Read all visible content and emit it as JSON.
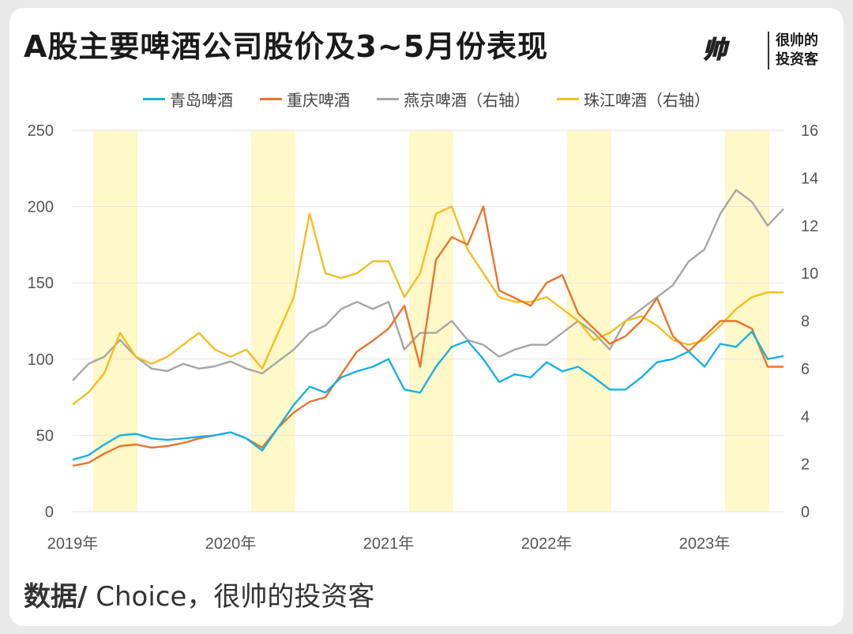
{
  "title": "A股主要啤酒公司股价及3~5月份表现",
  "brand": {
    "logo_text": "帅",
    "line1": "很帅的",
    "line2": "投资客"
  },
  "source": {
    "label": "数据/",
    "text": " Choice，很帅的投资客"
  },
  "colors": {
    "tsingtao": "#1ab0e6",
    "chongqing": "#e8742a",
    "yanjing": "#a6a6a6",
    "zhujiang": "#f5bd1f",
    "highlight": "#fff8c8",
    "grid": "#e4e4e4"
  },
  "chart_data": {
    "type": "line",
    "title": "A股主要啤酒公司股价及3~5月份表现",
    "x_range": [
      2019.0,
      2023.5
    ],
    "x_ticks": [
      {
        "value": 2019.0,
        "label": "2019年"
      },
      {
        "value": 2020.0,
        "label": "2020年"
      },
      {
        "value": 2021.0,
        "label": "2021年"
      },
      {
        "value": 2022.0,
        "label": "2022年"
      },
      {
        "value": 2023.0,
        "label": "2023年"
      }
    ],
    "y_left": {
      "range": [
        0,
        250
      ],
      "ticks": [
        0,
        50,
        100,
        150,
        200,
        250
      ]
    },
    "y_right": {
      "range": [
        0,
        16
      ],
      "ticks": [
        0,
        2,
        4,
        6,
        8,
        10,
        12,
        14,
        16
      ]
    },
    "highlight_periods": [
      [
        2019.13,
        2019.41
      ],
      [
        2020.13,
        2020.41
      ],
      [
        2021.13,
        2021.41
      ],
      [
        2022.13,
        2022.41
      ],
      [
        2023.13,
        2023.41
      ]
    ],
    "legend": [
      "青岛啤酒",
      "重庆啤酒",
      "燕京啤酒（右轴）",
      "珠江啤酒（右轴）"
    ],
    "series": [
      {
        "name": "青岛啤酒",
        "axis": "left",
        "color_key": "tsingtao",
        "x": [
          2019.0,
          2019.1,
          2019.2,
          2019.3,
          2019.4,
          2019.5,
          2019.6,
          2019.7,
          2019.8,
          2019.9,
          2020.0,
          2020.1,
          2020.2,
          2020.3,
          2020.4,
          2020.5,
          2020.6,
          2020.7,
          2020.8,
          2020.9,
          2021.0,
          2021.1,
          2021.2,
          2021.3,
          2021.4,
          2021.5,
          2021.6,
          2021.7,
          2021.8,
          2021.9,
          2022.0,
          2022.1,
          2022.2,
          2022.3,
          2022.4,
          2022.5,
          2022.6,
          2022.7,
          2022.8,
          2022.9,
          2023.0,
          2023.1,
          2023.2,
          2023.3,
          2023.4,
          2023.5
        ],
        "y": [
          34,
          37,
          44,
          50,
          51,
          48,
          47,
          48,
          49,
          50,
          52,
          48,
          40,
          55,
          70,
          82,
          78,
          88,
          92,
          95,
          100,
          80,
          78,
          95,
          108,
          112,
          100,
          85,
          90,
          88,
          98,
          92,
          95,
          88,
          80,
          80,
          88,
          98,
          100,
          105,
          95,
          110,
          108,
          118,
          100,
          102
        ]
      },
      {
        "name": "重庆啤酒",
        "axis": "left",
        "color_key": "chongqing",
        "x": [
          2019.0,
          2019.1,
          2019.2,
          2019.3,
          2019.4,
          2019.5,
          2019.6,
          2019.7,
          2019.8,
          2019.9,
          2020.0,
          2020.1,
          2020.2,
          2020.3,
          2020.4,
          2020.5,
          2020.6,
          2020.7,
          2020.8,
          2020.9,
          2021.0,
          2021.1,
          2021.2,
          2021.3,
          2021.4,
          2021.5,
          2021.6,
          2021.7,
          2021.8,
          2021.9,
          2022.0,
          2022.1,
          2022.2,
          2022.3,
          2022.4,
          2022.5,
          2022.6,
          2022.7,
          2022.8,
          2022.9,
          2023.0,
          2023.1,
          2023.2,
          2023.3,
          2023.4,
          2023.5
        ],
        "y": [
          30,
          32,
          38,
          43,
          44,
          42,
          43,
          45,
          48,
          50,
          52,
          48,
          42,
          55,
          65,
          72,
          75,
          90,
          105,
          112,
          120,
          135,
          95,
          165,
          180,
          175,
          200,
          145,
          140,
          135,
          150,
          155,
          130,
          120,
          110,
          115,
          125,
          140,
          115,
          105,
          115,
          125,
          125,
          120,
          95,
          95
        ]
      },
      {
        "name": "燕京啤酒（右轴）",
        "axis": "right",
        "color_key": "yanjing",
        "x": [
          2019.0,
          2019.1,
          2019.2,
          2019.3,
          2019.4,
          2019.5,
          2019.6,
          2019.7,
          2019.8,
          2019.9,
          2020.0,
          2020.1,
          2020.2,
          2020.3,
          2020.4,
          2020.5,
          2020.6,
          2020.7,
          2020.8,
          2020.9,
          2021.0,
          2021.1,
          2021.2,
          2021.3,
          2021.4,
          2021.5,
          2021.6,
          2021.7,
          2021.8,
          2021.9,
          2022.0,
          2022.1,
          2022.2,
          2022.3,
          2022.4,
          2022.5,
          2022.6,
          2022.7,
          2022.8,
          2022.9,
          2023.0,
          2023.1,
          2023.2,
          2023.3,
          2023.4,
          2023.5
        ],
        "y": [
          5.5,
          6.2,
          6.5,
          7.2,
          6.5,
          6.0,
          5.9,
          6.2,
          6.0,
          6.1,
          6.3,
          6.0,
          5.8,
          6.3,
          6.8,
          7.5,
          7.8,
          8.5,
          8.8,
          8.5,
          8.8,
          6.8,
          7.5,
          7.5,
          8.0,
          7.2,
          7.0,
          6.5,
          6.8,
          7.0,
          7.0,
          7.5,
          8.0,
          7.5,
          6.8,
          8.0,
          8.5,
          9.0,
          9.5,
          10.5,
          11.0,
          12.5,
          13.5,
          13.0,
          12.0,
          12.7
        ]
      },
      {
        "name": "珠江啤酒（右轴）",
        "axis": "right",
        "color_key": "zhujiang",
        "x": [
          2019.0,
          2019.1,
          2019.2,
          2019.3,
          2019.4,
          2019.5,
          2019.6,
          2019.7,
          2019.8,
          2019.9,
          2020.0,
          2020.1,
          2020.2,
          2020.3,
          2020.4,
          2020.5,
          2020.6,
          2020.7,
          2020.8,
          2020.9,
          2021.0,
          2021.1,
          2021.2,
          2021.3,
          2021.4,
          2021.5,
          2021.6,
          2021.7,
          2021.8,
          2021.9,
          2022.0,
          2022.1,
          2022.2,
          2022.3,
          2022.4,
          2022.5,
          2022.6,
          2022.7,
          2022.8,
          2022.9,
          2023.0,
          2023.1,
          2023.2,
          2023.3,
          2023.4,
          2023.5
        ],
        "y": [
          4.5,
          5.0,
          5.8,
          7.5,
          6.5,
          6.2,
          6.5,
          7.0,
          7.5,
          6.8,
          6.5,
          6.8,
          6.0,
          7.5,
          9.0,
          12.5,
          10.0,
          9.8,
          10.0,
          10.5,
          10.5,
          9.0,
          10.0,
          12.5,
          12.8,
          11.0,
          10.0,
          9.0,
          8.8,
          8.8,
          9.0,
          8.5,
          8.0,
          7.2,
          7.5,
          8.0,
          8.2,
          7.8,
          7.2,
          7.0,
          7.2,
          7.8,
          8.5,
          9.0,
          9.2,
          9.2
        ]
      }
    ]
  }
}
